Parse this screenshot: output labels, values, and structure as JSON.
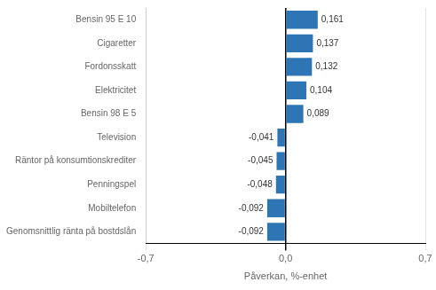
{
  "chart_data": {
    "type": "bar",
    "orientation": "horizontal",
    "xlabel": "Påverkan, %-enhet",
    "categories": [
      "Genomsnittlig ränta på bostdslån",
      "Mobiltelefon",
      "Penningspel",
      "Räntor på konsumtionskrediter",
      "Television",
      "Bensin 98 E 5",
      "Elektricitet",
      "Fordonsskatt",
      "Cigaretter",
      "Bensin 95 E 10"
    ],
    "values": [
      -0.092,
      -0.092,
      -0.048,
      -0.045,
      -0.041,
      0.089,
      0.104,
      0.132,
      0.137,
      0.161
    ],
    "value_labels": [
      "-0,092",
      "-0,092",
      "-0,048",
      "-0,045",
      "-0,041",
      "0,089",
      "0,104",
      "0,132",
      "0,137",
      "0,161"
    ],
    "data_labels": true,
    "color": "#2e75b6",
    "xlim": [
      -0.7,
      0.7
    ],
    "xticks": [
      {
        "value": -0.7,
        "label": "-0,7"
      },
      {
        "value": 0.0,
        "label": "0,0"
      },
      {
        "value": 0.7,
        "label": "0,7"
      }
    ],
    "grid": true
  }
}
